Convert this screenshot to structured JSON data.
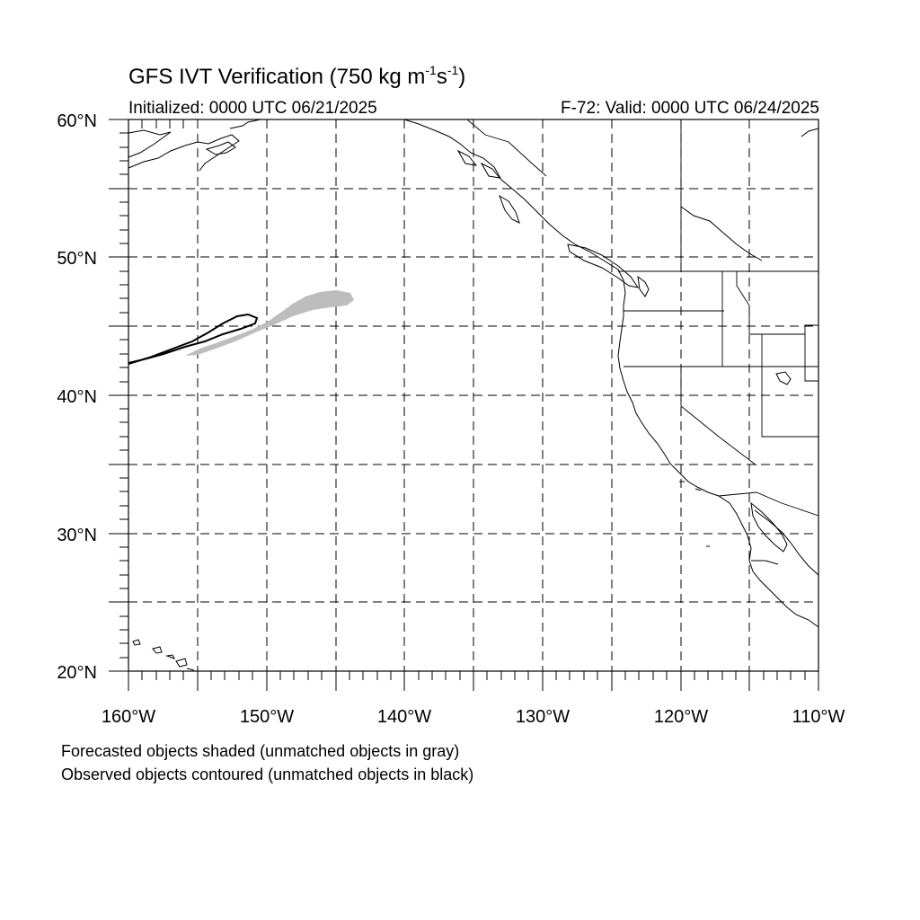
{
  "title": {
    "main": "GFS IVT Verification (750 kg m",
    "sup1": "-1",
    "mid": "s",
    "sup2": "-1",
    "close": ")"
  },
  "subtitle": {
    "initialized": "Initialized: 0000 UTC 06/21/2025",
    "valid": "F-72: Valid: 0000 UTC 06/24/2025"
  },
  "map": {
    "lon_range": [
      -160,
      -110
    ],
    "lat_range": [
      20,
      60
    ],
    "grid": "dashed every 5 degrees",
    "lat_labels": [
      "20°N",
      "30°N",
      "40°N",
      "50°N",
      "60°N"
    ],
    "lon_labels": [
      "160°W",
      "150°W",
      "140°W",
      "130°W",
      "120°W",
      "110°W"
    ],
    "colors": {
      "forecast_fill": "#bdbdbd",
      "observed_contour": "#000000",
      "coast": "#000000"
    }
  },
  "legend": {
    "line1": "Forecasted objects shaded (unmatched objects in gray)",
    "line2": "Observed objects contoured (unmatched objects in black)"
  }
}
